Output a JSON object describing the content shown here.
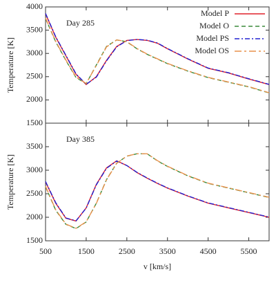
{
  "chart_data": [
    {
      "type": "line",
      "annotation": "Day 285",
      "ylabel": "Temperature [K]",
      "x": [
        500,
        750,
        1000,
        1250,
        1500,
        1750,
        2000,
        2250,
        2500,
        2750,
        3000,
        3250,
        3500,
        4000,
        4500,
        5000,
        5500,
        6000
      ],
      "series": [
        {
          "name": "Model P",
          "color": "#e0202a",
          "dash": "solid",
          "values": [
            3850,
            3350,
            2950,
            2550,
            2330,
            2500,
            2850,
            3150,
            3280,
            3300,
            3280,
            3220,
            3100,
            2880,
            2680,
            2580,
            2450,
            2330
          ]
        },
        {
          "name": "Model O",
          "color": "#3a8a3a",
          "dash": "dashed",
          "values": [
            3750,
            3250,
            2850,
            2480,
            2350,
            2750,
            3150,
            3290,
            3250,
            3100,
            2980,
            2880,
            2780,
            2620,
            2480,
            2380,
            2280,
            2150
          ]
        },
        {
          "name": "Model PS",
          "color": "#2020d0",
          "dash": "dashdot",
          "values": [
            3860,
            3360,
            2960,
            2560,
            2335,
            2490,
            2840,
            3140,
            3275,
            3300,
            3285,
            3225,
            3105,
            2885,
            2685,
            2585,
            2455,
            2335
          ]
        },
        {
          "name": "Model OS",
          "color": "#e8904a",
          "dash": "longdash",
          "values": [
            3760,
            3260,
            2860,
            2490,
            2355,
            2740,
            3140,
            3290,
            3255,
            3105,
            2985,
            2885,
            2785,
            2625,
            2485,
            2385,
            2285,
            2155
          ]
        }
      ],
      "xlim": [
        500,
        6000
      ],
      "xticks": [
        500,
        1500,
        2500,
        3500,
        4500,
        5500
      ],
      "ylim": [
        1500,
        4000
      ],
      "yticks": [
        1500,
        2000,
        2500,
        3000,
        3500,
        4000
      ],
      "legend": "upper right"
    },
    {
      "type": "line",
      "annotation": "Day 385",
      "ylabel": "Temperature [K]",
      "xlabel": "v [km/s]",
      "x": [
        500,
        750,
        1000,
        1250,
        1500,
        1750,
        2000,
        2250,
        2500,
        2750,
        3000,
        3250,
        3500,
        4000,
        4500,
        5000,
        5500,
        6000
      ],
      "series": [
        {
          "color": "#e0202a",
          "dash": "solid",
          "values": [
            2750,
            2300,
            1980,
            1920,
            2200,
            2700,
            3050,
            3200,
            3100,
            2950,
            2830,
            2720,
            2620,
            2450,
            2300,
            2200,
            2100,
            2000
          ]
        },
        {
          "color": "#3a8a3a",
          "dash": "dashed",
          "values": [
            2650,
            2150,
            1850,
            1760,
            1900,
            2300,
            2800,
            3150,
            3300,
            3350,
            3350,
            3200,
            3080,
            2880,
            2720,
            2620,
            2520,
            2420
          ]
        },
        {
          "color": "#2020d0",
          "dash": "dashdot",
          "values": [
            2760,
            2310,
            1985,
            1925,
            2195,
            2690,
            3040,
            3195,
            3100,
            2955,
            2835,
            2725,
            2625,
            2455,
            2305,
            2205,
            2105,
            2005
          ]
        },
        {
          "color": "#e8904a",
          "dash": "longdash",
          "values": [
            2660,
            2160,
            1855,
            1765,
            1905,
            2295,
            2795,
            3145,
            3300,
            3350,
            3350,
            3205,
            3085,
            2885,
            2725,
            2625,
            2525,
            2425
          ]
        }
      ],
      "xlim": [
        500,
        6000
      ],
      "xticks": [
        500,
        1500,
        2500,
        3500,
        4500,
        5500
      ],
      "ylim": [
        1500,
        4000
      ],
      "yticks": [
        1500,
        2000,
        2500,
        3000,
        3500
      ]
    }
  ]
}
